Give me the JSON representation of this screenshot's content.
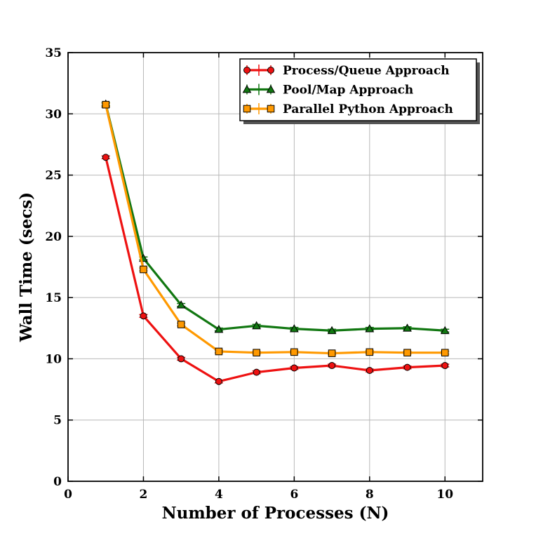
{
  "chart_data": {
    "type": "line",
    "title": "",
    "xlabel": "Number of Processes (N)",
    "ylabel": "Wall Time (secs)",
    "xlim": [
      0,
      11
    ],
    "ylim": [
      0,
      35
    ],
    "xticks": [
      0,
      2,
      4,
      6,
      8,
      10
    ],
    "yticks": [
      0,
      5,
      10,
      15,
      20,
      25,
      30,
      35
    ],
    "grid": true,
    "legend_position": "top-right",
    "series": [
      {
        "name": "Process/Queue Approach",
        "color": "#ee1111",
        "marker": "circle",
        "x": [
          1,
          2,
          3,
          4,
          5,
          6,
          7,
          8,
          9,
          10
        ],
        "y": [
          26.45,
          13.5,
          10.0,
          8.15,
          8.9,
          9.25,
          9.45,
          9.05,
          9.3,
          9.45
        ]
      },
      {
        "name": "Pool/Map Approach",
        "color": "#117711",
        "marker": "triangle",
        "x": [
          1,
          2,
          3,
          4,
          5,
          6,
          7,
          8,
          9,
          10
        ],
        "y": [
          30.8,
          18.2,
          14.4,
          12.4,
          12.7,
          12.45,
          12.3,
          12.45,
          12.5,
          12.3
        ]
      },
      {
        "name": "Parallel Python Approach",
        "color": "#ff9900",
        "marker": "square",
        "x": [
          1,
          2,
          3,
          4,
          5,
          6,
          7,
          8,
          9,
          10
        ],
        "y": [
          30.75,
          17.3,
          12.8,
          10.6,
          10.5,
          10.55,
          10.45,
          10.55,
          10.5,
          10.5
        ]
      }
    ]
  }
}
